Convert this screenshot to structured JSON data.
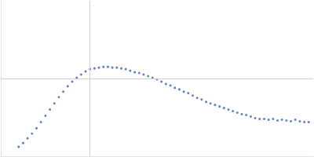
{
  "chart_data": {
    "type": "scatter",
    "color": "#3a66b8",
    "grid": true,
    "tick_labels": false,
    "marker": "circle",
    "xlim": [
      0,
      3.5
    ],
    "xticks": [
      1
    ],
    "ylim": [
      0,
      2
    ],
    "yticks": [
      1
    ],
    "x": [
      0.2,
      0.25,
      0.3,
      0.35,
      0.4,
      0.45,
      0.5,
      0.55,
      0.6,
      0.65,
      0.7,
      0.75,
      0.8,
      0.85,
      0.9,
      0.95,
      1.0,
      1.05,
      1.1,
      1.15,
      1.2,
      1.25,
      1.3,
      1.35,
      1.4,
      1.45,
      1.5,
      1.55,
      1.6,
      1.65,
      1.7,
      1.75,
      1.8,
      1.85,
      1.9,
      1.95,
      2.0,
      2.05,
      2.1,
      2.15,
      2.2,
      2.25,
      2.3,
      2.35,
      2.4,
      2.45,
      2.5,
      2.55,
      2.6,
      2.65,
      2.7,
      2.75,
      2.8,
      2.85,
      2.9,
      2.95,
      3.0,
      3.05,
      3.1,
      3.15,
      3.2,
      3.25,
      3.3,
      3.35,
      3.4,
      3.45
    ],
    "values": [
      0.12,
      0.17,
      0.23,
      0.29,
      0.36,
      0.44,
      0.52,
      0.6,
      0.68,
      0.76,
      0.83,
      0.9,
      0.96,
      1.01,
      1.05,
      1.09,
      1.12,
      1.13,
      1.14,
      1.15,
      1.15,
      1.14,
      1.14,
      1.13,
      1.12,
      1.1,
      1.08,
      1.07,
      1.05,
      1.03,
      1.01,
      0.99,
      0.96,
      0.93,
      0.91,
      0.88,
      0.86,
      0.83,
      0.81,
      0.78,
      0.75,
      0.73,
      0.7,
      0.68,
      0.66,
      0.64,
      0.62,
      0.6,
      0.58,
      0.56,
      0.54,
      0.53,
      0.51,
      0.49,
      0.48,
      0.48,
      0.47,
      0.48,
      0.46,
      0.47,
      0.46,
      0.45,
      0.47,
      0.45,
      0.44,
      0.44
    ]
  }
}
